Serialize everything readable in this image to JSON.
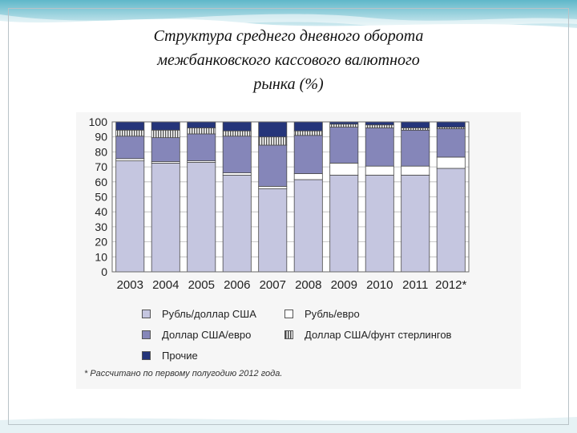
{
  "slide": {
    "title_lines": [
      "Структура среднего дневного оборота",
      "межбанковского кассового валютного",
      "рынка (%)"
    ],
    "footnote": "* Рассчитано по первому полугодию 2012 года."
  },
  "colors": {
    "rub_usd": "#c5c6e0",
    "rub_eur": "#ffffff",
    "usd_eur": "#8586b9",
    "usd_gbp": "#e4e4e4",
    "other": "#25357a"
  },
  "chart_data": {
    "type": "bar",
    "stacked": true,
    "title": "",
    "xlabel": "",
    "ylabel": "",
    "ylim": [
      0,
      100
    ],
    "yticks": [
      0,
      10,
      20,
      30,
      40,
      50,
      60,
      70,
      80,
      90,
      100
    ],
    "grid": true,
    "legend_position": "bottom",
    "categories": [
      "2003",
      "2004",
      "2005",
      "2006",
      "2007",
      "2008",
      "2009",
      "2010",
      "2011",
      "2012*"
    ],
    "series": [
      {
        "name": "Рубль/доллар США",
        "key": "rub_usd",
        "values": [
          74,
          72.5,
          73,
          64.5,
          55.5,
          61.5,
          64.5,
          64.5,
          64.5,
          69
        ]
      },
      {
        "name": "Рубль/евро",
        "key": "rub_eur",
        "values": [
          1.5,
          1,
          1,
          1.5,
          1.5,
          4,
          8,
          6,
          6,
          7.5
        ]
      },
      {
        "name": "Доллар США/евро",
        "key": "usd_eur",
        "values": [
          15,
          16,
          18,
          24.5,
          27.5,
          25.5,
          24,
          25.5,
          24,
          19
        ]
      },
      {
        "name": "Доллар США/фунт стерлингов",
        "key": "usd_gbp",
        "values": [
          4,
          5,
          4,
          3.5,
          5.5,
          3,
          2,
          2,
          1.5,
          1
        ]
      },
      {
        "name": "Прочие",
        "key": "other",
        "values": [
          5.5,
          5.5,
          4,
          6,
          10,
          6,
          1.5,
          2,
          4,
          3.5
        ]
      }
    ]
  },
  "legend": {
    "items": [
      {
        "label": "Рубль/доллар США",
        "key": "rub_usd"
      },
      {
        "label": "Рубль/евро",
        "key": "rub_eur"
      },
      {
        "label": "Доллар США/евро",
        "key": "usd_eur"
      },
      {
        "label": "Доллар США/фунт стерлингов",
        "key": "usd_gbp"
      },
      {
        "label": "Прочие",
        "key": "other"
      }
    ]
  }
}
